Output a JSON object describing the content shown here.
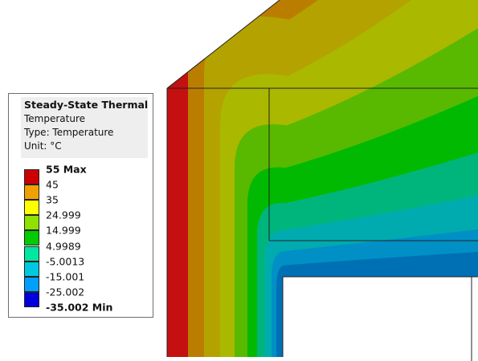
{
  "legend": {
    "title": "Steady-State Thermal",
    "line_quantity": "Temperature",
    "line_type": "Type: Temperature",
    "line_unit": "Unit: °C",
    "labels": [
      "55 Max",
      "45",
      "35",
      "24.999",
      "14.999",
      "4.9989",
      "-5.0013",
      "-15.001",
      "-25.002",
      "-35.002 Min"
    ],
    "colors": [
      "#cc0000",
      "#f0a000",
      "#ffff00",
      "#90e000",
      "#00cc00",
      "#00e8a0",
      "#00c8e0",
      "#00a0ff",
      "#0000dd"
    ]
  },
  "contour": {
    "band_colors": [
      "#c41010",
      "#bb7d00",
      "#b4a200",
      "#aab800",
      "#58b900",
      "#00b900",
      "#00b57c",
      "#00abb0",
      "#0090c6",
      "#0070b5",
      "#0018c0"
    ]
  }
}
